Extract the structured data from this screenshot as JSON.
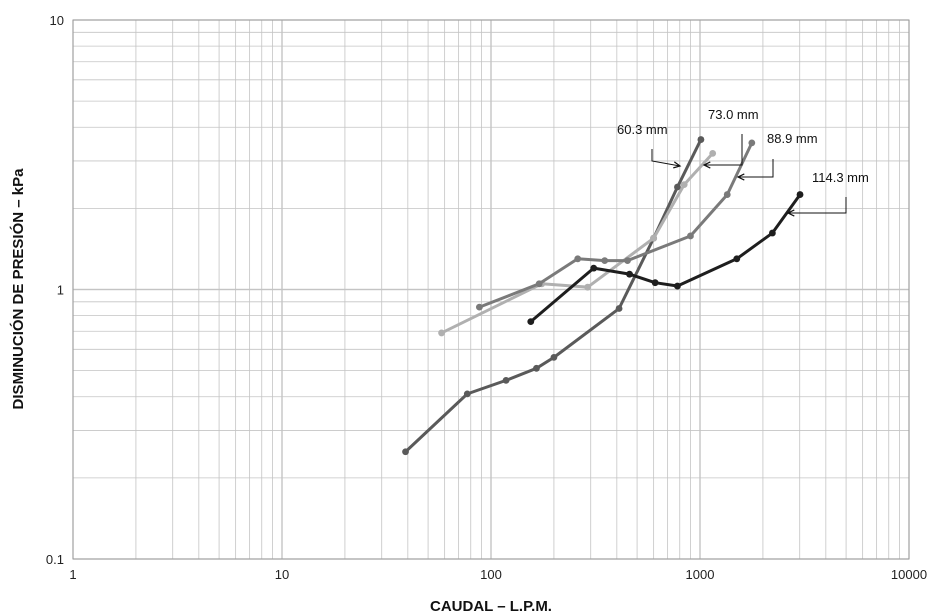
{
  "chart_data": {
    "type": "line",
    "xlabel": "CAUDAL – L.P.M.",
    "ylabel": "DISMINUCIÓN DE PRESIÓN – kPa",
    "xscale": "log",
    "yscale": "log",
    "xlim": [
      1,
      10000
    ],
    "ylim": [
      0.1,
      10
    ],
    "x_ticks": [
      "1",
      "10",
      "100",
      "1000",
      "10000"
    ],
    "y_ticks": [
      "0.1",
      "1",
      "10"
    ],
    "grid": true,
    "series": [
      {
        "name": "60.3 mm",
        "color": "#5a5a5a",
        "x": [
          39,
          77,
          118,
          165,
          200,
          410,
          600,
          780,
          1010
        ],
        "y": [
          0.25,
          0.41,
          0.46,
          0.51,
          0.56,
          0.85,
          1.55,
          2.4,
          3.6
        ]
      },
      {
        "name": "73.0 mm",
        "color": "#b0b0b0",
        "x": [
          58,
          175,
          290,
          600,
          840,
          1150
        ],
        "y": [
          0.69,
          1.05,
          1.02,
          1.55,
          2.45,
          3.2
        ]
      },
      {
        "name": "88.9 mm",
        "color": "#7a7a7a",
        "x": [
          88,
          170,
          260,
          350,
          450,
          900,
          1350,
          1770
        ],
        "y": [
          0.86,
          1.05,
          1.3,
          1.28,
          1.28,
          1.58,
          2.25,
          3.5
        ]
      },
      {
        "name": "114.3 mm",
        "color": "#1e1e1e",
        "x": [
          155,
          310,
          460,
          610,
          780,
          1500,
          2220,
          3010
        ],
        "y": [
          0.76,
          1.2,
          1.14,
          1.06,
          1.03,
          1.3,
          1.62,
          2.25
        ]
      }
    ]
  }
}
